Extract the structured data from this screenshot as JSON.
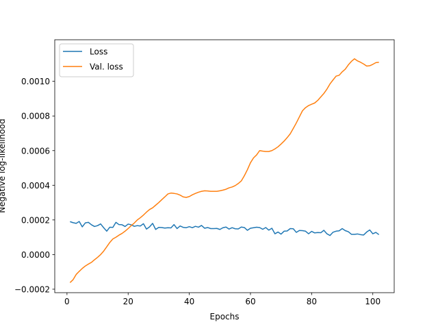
{
  "chart_data": {
    "type": "line",
    "title": "",
    "xlabel": "Epochs",
    "ylabel": "Negative log-likelihood",
    "xlim": [
      -4,
      107
    ],
    "ylim": [
      -0.00022,
      0.00124
    ],
    "xticks": [
      0,
      20,
      40,
      60,
      80,
      100
    ],
    "yticks": [
      -0.0002,
      0.0,
      0.0002,
      0.0004,
      0.0006,
      0.0008,
      0.001
    ],
    "ytick_labels": [
      "−0.0002",
      "0.0000",
      "0.0002",
      "0.0004",
      "0.0006",
      "0.0008",
      "0.0010"
    ],
    "grid": false,
    "legend_position": "top-left",
    "series": [
      {
        "name": "Loss",
        "color": "#1f77b4",
        "x": [
          1,
          2,
          3,
          4,
          5,
          6,
          7,
          8,
          9,
          10,
          11,
          12,
          13,
          14,
          15,
          16,
          17,
          18,
          19,
          20,
          21,
          22,
          23,
          24,
          25,
          26,
          27,
          28,
          29,
          30,
          31,
          32,
          33,
          34,
          35,
          36,
          37,
          38,
          39,
          40,
          41,
          42,
          43,
          44,
          45,
          46,
          47,
          48,
          49,
          50,
          51,
          52,
          53,
          54,
          55,
          56,
          57,
          58,
          59,
          60,
          61,
          62,
          63,
          64,
          65,
          66,
          67,
          68,
          69,
          70,
          71,
          72,
          73,
          74,
          75,
          76,
          77,
          78,
          79,
          80,
          81,
          82,
          83,
          84,
          85,
          86,
          87,
          88,
          89,
          90,
          91,
          92,
          93,
          94,
          95,
          96,
          97,
          98,
          99,
          100,
          101,
          102
        ],
        "y": [
          0.00019,
          0.000184,
          0.00018,
          0.000191,
          0.00016,
          0.000183,
          0.000186,
          0.000172,
          0.000162,
          0.000167,
          0.000177,
          0.000155,
          0.000135,
          0.000158,
          0.000157,
          0.000186,
          0.000173,
          0.000172,
          0.000162,
          0.000176,
          0.000172,
          0.000163,
          0.000167,
          0.000165,
          0.000178,
          0.000147,
          0.00016,
          0.00018,
          0.000145,
          0.000157,
          0.000156,
          0.000153,
          0.000155,
          0.000154,
          0.000173,
          0.00015,
          0.000165,
          0.000157,
          0.000155,
          0.000161,
          0.000155,
          0.000163,
          0.000158,
          0.000168,
          0.000152,
          0.000156,
          0.00015,
          0.00015,
          0.000151,
          0.000145,
          0.000155,
          0.000159,
          0.000147,
          0.000155,
          0.000149,
          0.000148,
          0.000159,
          0.000156,
          0.00014,
          0.000152,
          0.000155,
          0.000158,
          0.000156,
          0.000146,
          0.000156,
          0.000141,
          0.000152,
          0.00012,
          0.00013,
          0.000118,
          0.000135,
          0.000136,
          0.00015,
          0.000149,
          0.000128,
          0.000139,
          0.000138,
          0.000135,
          0.00012,
          0.000134,
          0.000125,
          0.000127,
          0.000126,
          0.00014,
          0.00012,
          0.00011,
          0.000129,
          0.000135,
          0.000137,
          0.00015,
          0.000138,
          0.000132,
          0.000117,
          0.000117,
          0.000119,
          0.000115,
          0.000113,
          0.00013,
          0.000142,
          0.00012,
          0.000128,
          0.000115
        ]
      },
      {
        "name": "Val. loss",
        "color": "#ff7f0e",
        "x": [
          1,
          2,
          3,
          4,
          5,
          6,
          7,
          8,
          9,
          10,
          11,
          12,
          13,
          14,
          15,
          16,
          17,
          18,
          19,
          20,
          21,
          22,
          23,
          24,
          25,
          26,
          27,
          28,
          29,
          30,
          31,
          32,
          33,
          34,
          35,
          36,
          37,
          38,
          39,
          40,
          41,
          42,
          43,
          44,
          45,
          46,
          47,
          48,
          49,
          50,
          51,
          52,
          53,
          54,
          55,
          56,
          57,
          58,
          59,
          60,
          61,
          62,
          63,
          64,
          65,
          66,
          67,
          68,
          69,
          70,
          71,
          72,
          73,
          74,
          75,
          76,
          77,
          78,
          79,
          80,
          81,
          82,
          83,
          84,
          85,
          86,
          87,
          88,
          89,
          90,
          91,
          92,
          93,
          94,
          95,
          96,
          97,
          98,
          99,
          100,
          101,
          102
        ],
        "y": [
          -0.000162,
          -0.000145,
          -0.000115,
          -9.7e-05,
          -8e-05,
          -6.6e-05,
          -5.5e-05,
          -4.5e-05,
          -3e-05,
          -1.6e-05,
          0.0,
          2e-05,
          4.5e-05,
          7e-05,
          9e-05,
          0.0001,
          0.000112,
          0.000122,
          0.000135,
          0.00015,
          0.000167,
          0.000182,
          0.0002,
          0.000213,
          0.000228,
          0.000245,
          0.00026,
          0.00027,
          0.000285,
          0.0003,
          0.000317,
          0.000333,
          0.00035,
          0.000355,
          0.000353,
          0.00035,
          0.000343,
          0.000333,
          0.00033,
          0.000335,
          0.000345,
          0.000353,
          0.00036,
          0.000365,
          0.000368,
          0.000367,
          0.000365,
          0.000365,
          0.000365,
          0.000368,
          0.000372,
          0.000377,
          0.000385,
          0.00039,
          0.000398,
          0.00041,
          0.000425,
          0.000455,
          0.00049,
          0.00053,
          0.000558,
          0.000575,
          0.0006,
          0.000597,
          0.000595,
          0.000595,
          0.0006,
          0.00061,
          0.000622,
          0.000638,
          0.000655,
          0.000675,
          0.000697,
          0.000728,
          0.00076,
          0.000795,
          0.00083,
          0.000848,
          0.00086,
          0.000868,
          0.000875,
          0.00089,
          0.00091,
          0.00093,
          0.000955,
          0.000985,
          0.001008,
          0.00103,
          0.001035,
          0.001055,
          0.00107,
          0.001095,
          0.001115,
          0.00113,
          0.001118,
          0.00111,
          0.0011,
          0.001088,
          0.00109,
          0.001098,
          0.001108,
          0.00111
        ]
      }
    ]
  }
}
